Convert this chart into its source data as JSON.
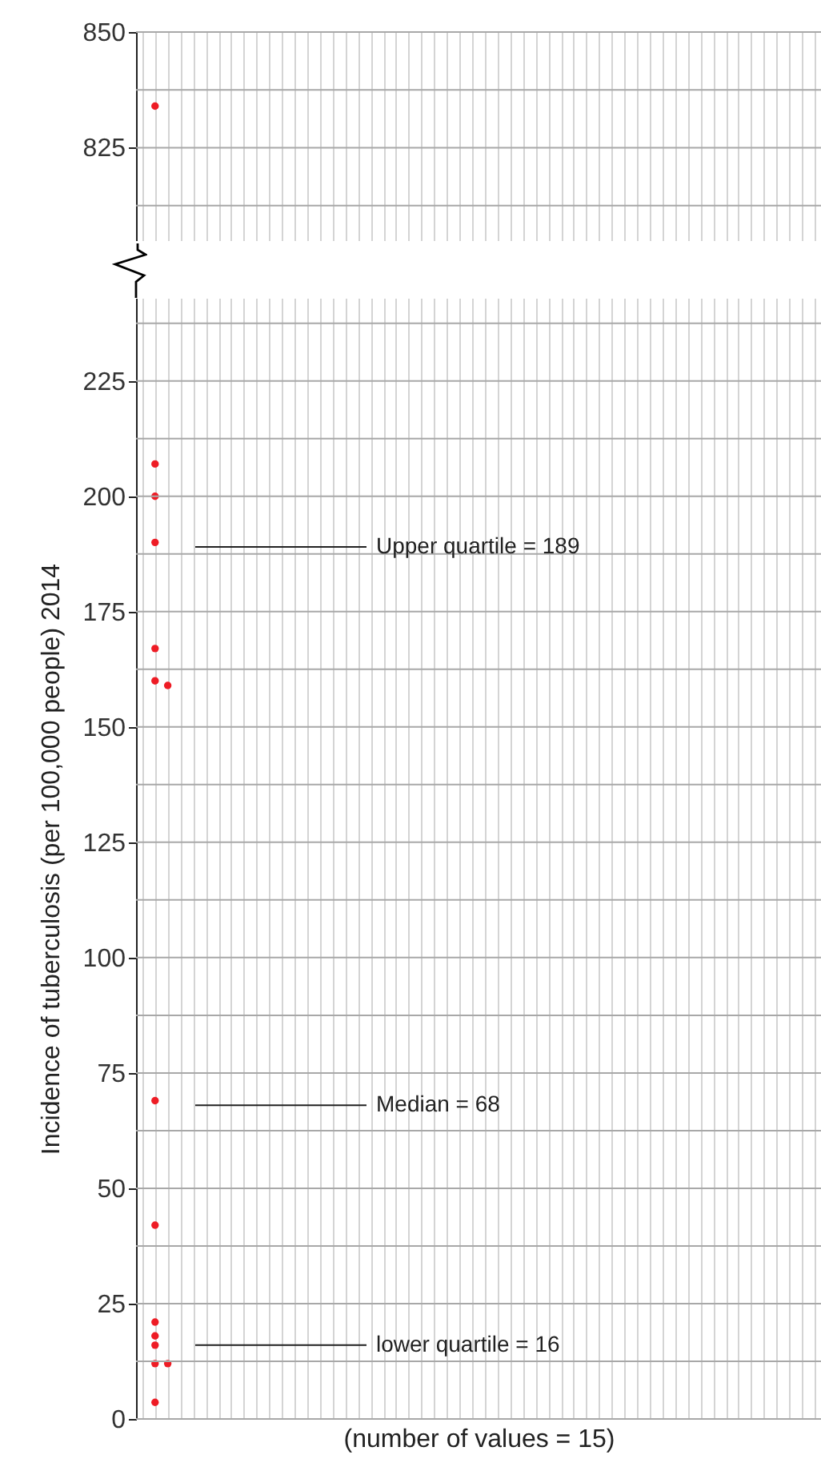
{
  "chart_data": [
    {
      "type": "scatter",
      "categories": [
        null,
        null,
        null,
        null,
        null,
        null,
        null,
        null,
        null,
        null,
        null,
        null,
        null,
        null,
        null,
        null,
        null,
        null,
        null,
        null,
        null,
        null,
        null,
        null,
        null,
        null,
        null,
        null,
        null,
        null,
        null,
        null,
        null,
        null,
        null,
        null,
        null,
        null,
        null,
        null,
        null,
        null,
        null,
        null,
        null,
        null,
        null,
        null,
        null,
        null,
        null,
        null,
        null,
        null
      ],
      "ylim": [
        805,
        850
      ],
      "yticks": [
        {
          "value": 812.5,
          "label": null
        },
        825,
        {
          "value": 837.5,
          "label": null
        },
        850
      ],
      "grid": true,
      "tick_labels": "y",
      "marker": "circle",
      "series": [
        {
          "color": "#ee1c25",
          "values": [
            null,
            834,
            null,
            null,
            null,
            null,
            null,
            null,
            null,
            null,
            null,
            null,
            null,
            null,
            null,
            null,
            null,
            null,
            null,
            null,
            null,
            null,
            null,
            null,
            null,
            null,
            null,
            null,
            null,
            null,
            null,
            null,
            null,
            null,
            null,
            null,
            null,
            null,
            null,
            null,
            null,
            null,
            null,
            null,
            null,
            null,
            null,
            null,
            null,
            null,
            null,
            null,
            null,
            null
          ]
        }
      ]
    },
    {
      "type": "scatter",
      "categories": [
        null,
        null,
        null,
        null,
        null,
        null,
        null,
        null,
        null,
        null,
        null,
        null,
        null,
        null,
        null,
        null,
        null,
        null,
        null,
        null,
        null,
        null,
        null,
        null,
        null,
        null,
        null,
        null,
        null,
        null,
        null,
        null,
        null,
        null,
        null,
        null,
        null,
        null,
        null,
        null,
        null,
        null,
        null,
        null,
        null,
        null,
        null,
        null,
        null,
        null,
        null,
        null,
        null,
        null
      ],
      "ylim": [
        0,
        243
      ],
      "yticks": [
        0,
        {
          "value": 12.5,
          "label": null
        },
        25,
        {
          "value": 37.5,
          "label": null
        },
        50,
        {
          "value": 62.5,
          "label": null
        },
        75,
        {
          "value": 87.5,
          "label": null
        },
        100,
        {
          "value": 112.5,
          "label": null
        },
        125,
        {
          "value": 137.5,
          "label": null
        },
        150,
        {
          "value": 162.5,
          "label": null
        },
        175,
        {
          "value": 187.5,
          "label": null
        },
        200,
        {
          "value": 212.5,
          "label": null
        },
        225,
        {
          "value": 237.5,
          "label": null
        }
      ],
      "grid": true,
      "tick_labels": "y",
      "marker": "circle",
      "xlabel": "(number of values = 15)",
      "ylabel": "Incidence of tuberculosis (per 100,000 people) 2014",
      "series": [
        {
          "color": "#ee1c25",
          "values": [
            null,
            3.6,
            null,
            null,
            null,
            null,
            null,
            null,
            null,
            null,
            null,
            null,
            null,
            null,
            null,
            null,
            null,
            null,
            null,
            null,
            null,
            null,
            null,
            null,
            null,
            null,
            null,
            null,
            null,
            null,
            null,
            null,
            null,
            null,
            null,
            null,
            null,
            null,
            null,
            null,
            null,
            null,
            null,
            null,
            null,
            null,
            null,
            null,
            null,
            null,
            null,
            null,
            null,
            null
          ]
        },
        {
          "color": "#ee1c25",
          "values": [
            null,
            12,
            12,
            null,
            null,
            null,
            null,
            null,
            null,
            null,
            null,
            null,
            null,
            null,
            null,
            null,
            null,
            null,
            null,
            null,
            null,
            null,
            null,
            null,
            null,
            null,
            null,
            null,
            null,
            null,
            null,
            null,
            null,
            null,
            null,
            null,
            null,
            null,
            null,
            null,
            null,
            null,
            null,
            null,
            null,
            null,
            null,
            null,
            null,
            null,
            null,
            null,
            null,
            null
          ]
        },
        {
          "color": "#ee1c25",
          "values": [
            null,
            16,
            null,
            null,
            null,
            null,
            null,
            null,
            null,
            null,
            null,
            null,
            null,
            null,
            null,
            null,
            null,
            null,
            null,
            null,
            null,
            null,
            null,
            null,
            null,
            null,
            null,
            null,
            null,
            null,
            null,
            null,
            null,
            null,
            null,
            null,
            null,
            null,
            null,
            null,
            null,
            null,
            null,
            null,
            null,
            null,
            null,
            null,
            null,
            null,
            null,
            null,
            null,
            null
          ]
        },
        {
          "color": "#ee1c25",
          "values": [
            null,
            18,
            null,
            null,
            null,
            null,
            null,
            null,
            null,
            null,
            null,
            null,
            null,
            null,
            null,
            null,
            null,
            null,
            null,
            null,
            null,
            null,
            null,
            null,
            null,
            null,
            null,
            null,
            null,
            null,
            null,
            null,
            null,
            null,
            null,
            null,
            null,
            null,
            null,
            null,
            null,
            null,
            null,
            null,
            null,
            null,
            null,
            null,
            null,
            null,
            null,
            null,
            null,
            null
          ]
        },
        {
          "color": "#ee1c25",
          "values": [
            null,
            21,
            null,
            null,
            null,
            null,
            null,
            null,
            null,
            null,
            null,
            null,
            null,
            null,
            null,
            null,
            null,
            null,
            null,
            null,
            null,
            null,
            null,
            null,
            null,
            null,
            null,
            null,
            null,
            null,
            null,
            null,
            null,
            null,
            null,
            null,
            null,
            null,
            null,
            null,
            null,
            null,
            null,
            null,
            null,
            null,
            null,
            null,
            null,
            null,
            null,
            null,
            null,
            null
          ]
        },
        {
          "color": "#ee1c25",
          "values": [
            null,
            42,
            null,
            null,
            null,
            null,
            null,
            null,
            null,
            null,
            null,
            null,
            null,
            null,
            null,
            null,
            null,
            null,
            null,
            null,
            null,
            null,
            null,
            null,
            null,
            null,
            null,
            null,
            null,
            null,
            null,
            null,
            null,
            null,
            null,
            null,
            null,
            null,
            null,
            null,
            null,
            null,
            null,
            null,
            null,
            null,
            null,
            null,
            null,
            null,
            null,
            null,
            null,
            null
          ]
        },
        {
          "color": "#ee1c25",
          "values": [
            null,
            69,
            null,
            null,
            null,
            null,
            null,
            null,
            null,
            null,
            null,
            null,
            null,
            null,
            null,
            null,
            null,
            null,
            null,
            null,
            null,
            null,
            null,
            null,
            null,
            null,
            null,
            null,
            null,
            null,
            null,
            null,
            null,
            null,
            null,
            null,
            null,
            null,
            null,
            null,
            null,
            null,
            null,
            null,
            null,
            null,
            null,
            null,
            null,
            null,
            null,
            null,
            null,
            null
          ]
        },
        {
          "color": "#ee1c25",
          "values": [
            null,
            160,
            159,
            null,
            null,
            null,
            null,
            null,
            null,
            null,
            null,
            null,
            null,
            null,
            null,
            null,
            null,
            null,
            null,
            null,
            null,
            null,
            null,
            null,
            null,
            null,
            null,
            null,
            null,
            null,
            null,
            null,
            null,
            null,
            null,
            null,
            null,
            null,
            null,
            null,
            null,
            null,
            null,
            null,
            null,
            null,
            null,
            null,
            null,
            null,
            null,
            null,
            null,
            null
          ]
        },
        {
          "color": "#ee1c25",
          "values": [
            null,
            167,
            null,
            null,
            null,
            null,
            null,
            null,
            null,
            null,
            null,
            null,
            null,
            null,
            null,
            null,
            null,
            null,
            null,
            null,
            null,
            null,
            null,
            null,
            null,
            null,
            null,
            null,
            null,
            null,
            null,
            null,
            null,
            null,
            null,
            null,
            null,
            null,
            null,
            null,
            null,
            null,
            null,
            null,
            null,
            null,
            null,
            null,
            null,
            null,
            null,
            null,
            null,
            null
          ]
        },
        {
          "color": "#ee1c25",
          "values": [
            null,
            190,
            null,
            null,
            null,
            null,
            null,
            null,
            null,
            null,
            null,
            null,
            null,
            null,
            null,
            null,
            null,
            null,
            null,
            null,
            null,
            null,
            null,
            null,
            null,
            null,
            null,
            null,
            null,
            null,
            null,
            null,
            null,
            null,
            null,
            null,
            null,
            null,
            null,
            null,
            null,
            null,
            null,
            null,
            null,
            null,
            null,
            null,
            null,
            null,
            null,
            null,
            null,
            null
          ]
        },
        {
          "color": "#ee1c25",
          "values": [
            null,
            200,
            null,
            null,
            null,
            null,
            null,
            null,
            null,
            null,
            null,
            null,
            null,
            null,
            null,
            null,
            null,
            null,
            null,
            null,
            null,
            null,
            null,
            null,
            null,
            null,
            null,
            null,
            null,
            null,
            null,
            null,
            null,
            null,
            null,
            null,
            null,
            null,
            null,
            null,
            null,
            null,
            null,
            null,
            null,
            null,
            null,
            null,
            null,
            null,
            null,
            null,
            null,
            null
          ]
        },
        {
          "color": "#ee1c25",
          "values": [
            null,
            207,
            null,
            null,
            null,
            null,
            null,
            null,
            null,
            null,
            null,
            null,
            null,
            null,
            null,
            null,
            null,
            null,
            null,
            null,
            null,
            null,
            null,
            null,
            null,
            null,
            null,
            null,
            null,
            null,
            null,
            null,
            null,
            null,
            null,
            null,
            null,
            null,
            null,
            null,
            null,
            null,
            null,
            null,
            null,
            null,
            null,
            null,
            null,
            null,
            null,
            null,
            null,
            null
          ]
        }
      ],
      "ref_lines": [
        {
          "axis": "y",
          "value": 189,
          "label": "Upper quartile = 189"
        },
        {
          "axis": "y",
          "value": 68,
          "label": "Median = 68"
        },
        {
          "axis": "y",
          "value": 16,
          "label": "lower quartile = 16"
        }
      ]
    }
  ]
}
